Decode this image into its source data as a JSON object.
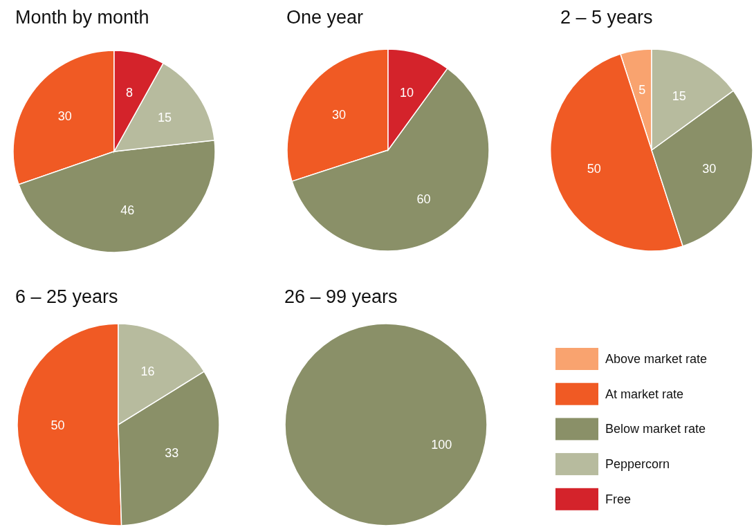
{
  "chart_data": [
    {
      "type": "pie",
      "title": "Month by month",
      "values": [
        30,
        46,
        15,
        8
      ],
      "colors": [
        "#f05a24",
        "#8a9068",
        "#b7bb9e",
        "#d4232b"
      ],
      "data_labels": true
    },
    {
      "type": "pie",
      "title": "One year",
      "values": [
        30,
        60,
        10
      ],
      "colors": [
        "#f05a24",
        "#8a9068",
        "#d4232b"
      ],
      "data_labels": true
    },
    {
      "type": "pie",
      "title": "2 – 5 years",
      "values": [
        5,
        50,
        30,
        15
      ],
      "colors": [
        "#f9a36f",
        "#f05a24",
        "#8a9068",
        "#b7bb9e"
      ],
      "data_labels": true
    },
    {
      "type": "pie",
      "title": "6 – 25 years",
      "values": [
        50,
        33,
        16
      ],
      "colors": [
        "#f05a24",
        "#8a9068",
        "#b7bb9e"
      ],
      "data_labels": true
    },
    {
      "type": "pie",
      "title": "26 – 99 years",
      "categories": [
        "Above market rate",
        "At market rate",
        "Below market rate",
        "Peppercorn",
        "Free"
      ],
      "values": [
        0,
        0,
        100,
        0,
        0
      ],
      "colors": [
        "#f9a36f",
        "#f05a24",
        "#8a9068",
        "#b7bb9e",
        "#d4232b"
      ],
      "data_labels": true,
      "legend": "right"
    }
  ]
}
